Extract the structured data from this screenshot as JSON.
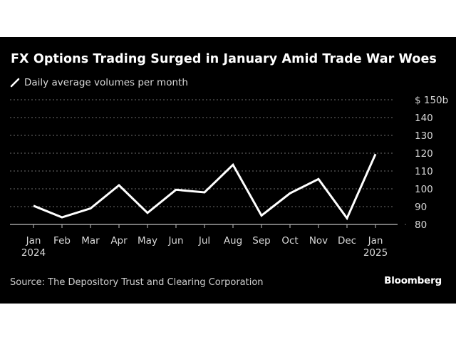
{
  "header": {
    "title": "FX Options Trading Surged in January Amid Trade War Woes",
    "legend_label": "Daily average volumes per month"
  },
  "footer": {
    "source": "Source: The Depository Trust and Clearing Corporation",
    "brand": "Bloomberg"
  },
  "colors": {
    "background": "#000000",
    "line": "#ffffff",
    "gridline": "#6e6e6e",
    "text": "#d9d9d9"
  },
  "chart_data": {
    "type": "line",
    "title": "FX Options Trading Surged in January Amid Trade War Woes",
    "subtitle": "Daily average volumes per month",
    "xlabel": "",
    "ylabel": "",
    "x": [
      "Jan 2024",
      "Feb",
      "Mar",
      "Apr",
      "May",
      "Jun",
      "Jul",
      "Aug",
      "Sep",
      "Oct",
      "Nov",
      "Dec",
      "Jan 2025"
    ],
    "x_tick_labels": [
      {
        "line1": "Jan",
        "line2": "2024"
      },
      {
        "line1": "Feb",
        "line2": ""
      },
      {
        "line1": "Mar",
        "line2": ""
      },
      {
        "line1": "Apr",
        "line2": ""
      },
      {
        "line1": "May",
        "line2": ""
      },
      {
        "line1": "Jun",
        "line2": ""
      },
      {
        "line1": "Jul",
        "line2": ""
      },
      {
        "line1": "Aug",
        "line2": ""
      },
      {
        "line1": "Sep",
        "line2": ""
      },
      {
        "line1": "Oct",
        "line2": ""
      },
      {
        "line1": "Nov",
        "line2": ""
      },
      {
        "line1": "Dec",
        "line2": ""
      },
      {
        "line1": "Jan",
        "line2": "2025"
      }
    ],
    "series": [
      {
        "name": "Daily average volumes per month",
        "unit": "$ billions",
        "values": [
          90.5,
          84,
          89,
          102,
          86.5,
          99.5,
          98,
          113.5,
          85,
          97.5,
          105.5,
          83.5,
          119.5
        ]
      }
    ],
    "ylim": [
      80,
      150
    ],
    "y_ticks": [
      80,
      90,
      100,
      110,
      120,
      130,
      140,
      150
    ],
    "y_tick_labels": [
      "80",
      "90",
      "100",
      "110",
      "120",
      "130",
      "140",
      "$ 150b"
    ],
    "y_axis_side": "right",
    "grid": true,
    "legend_position": "top-left",
    "source": "Source: The Depository Trust and Clearing Corporation"
  }
}
